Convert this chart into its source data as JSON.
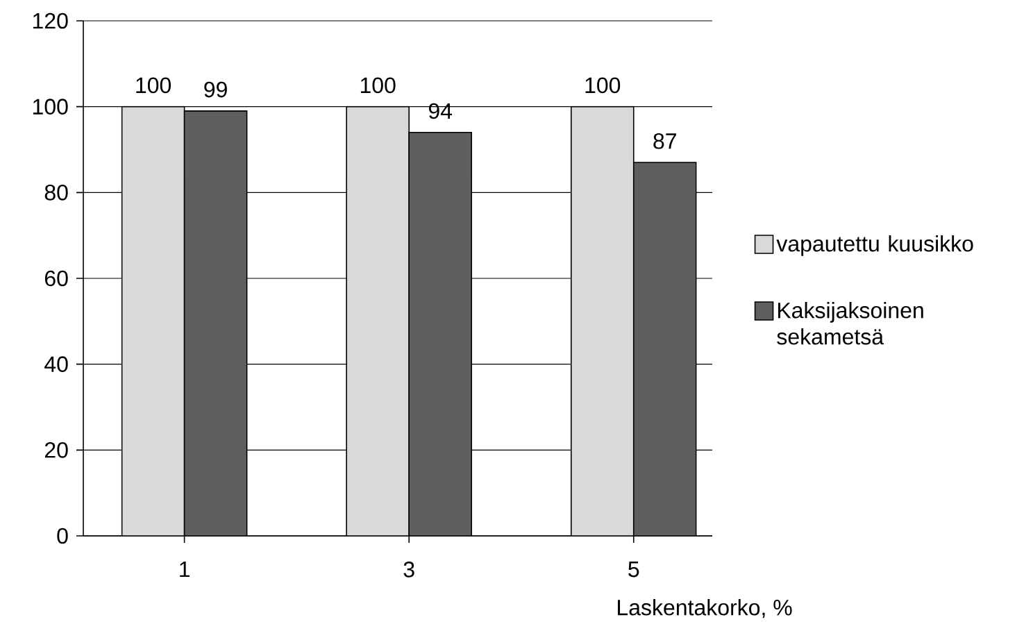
{
  "chart_data": {
    "type": "bar",
    "xlabel": "Laskentakorko, %",
    "categories": [
      "1",
      "3",
      "5"
    ],
    "series": [
      {
        "name": "vapautettu kuusikko",
        "color": "#d9d9d9",
        "values": [
          100,
          100,
          100
        ]
      },
      {
        "name": "Kaksijaksoinen sekametsä",
        "color": "#5f5f5f",
        "values": [
          99,
          94,
          87
        ]
      }
    ],
    "ylim": [
      0,
      120
    ],
    "yticks": [
      0,
      20,
      40,
      60,
      80,
      100,
      120
    ],
    "grid": "y",
    "legend": "right",
    "data_labels": true
  }
}
